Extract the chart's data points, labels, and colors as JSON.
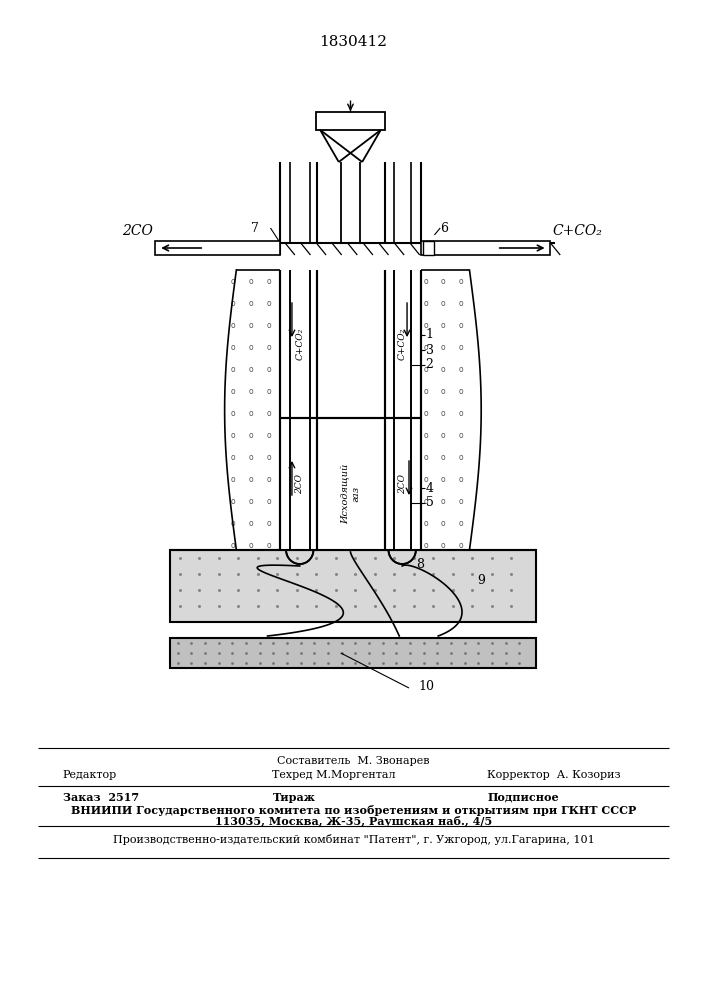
{
  "patent_number": "1830412",
  "bg_color": "#ffffff",
  "lc": "#000000",
  "footer": {
    "составитель": "Составитель  М. Звонарев",
    "редактор": "Редактор",
    "техред": "Техред М.Моргентал",
    "корректор": "Корректор  А. Козориз",
    "заказ": "Заказ  2517",
    "тираж": "Тираж",
    "подписное": "Подписное",
    "вниипи": "ВНИИПИ Государственного комитета по изобретениям и открытиям при ГКНТ СССР",
    "адрес": "113035, Москва, Ж-35, Раушская наб., 4/5",
    "завод": "Производственно-издательский комбинат \"Патент\", г. Ужгород, ул.Гагарина, 101"
  },
  "labels": {
    "2CO_left": "2CO",
    "CCO2_right": "C+CO₂",
    "label6": "6",
    "label7": "7",
    "label1": "1",
    "label2": "2",
    "label3": "3",
    "label4": "4",
    "label5": "5",
    "label8": "8",
    "label9": "9",
    "label10": "10",
    "text_CCO2_pipe": "C+CO₂",
    "text_2CO_lower": "2CO",
    "text_iskhod": "Исходящий\nгаз",
    "text_2CO_right_lower": "2CO"
  }
}
